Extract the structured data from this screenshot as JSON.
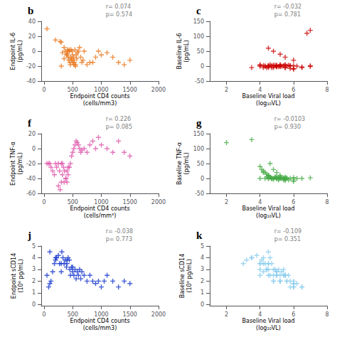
{
  "chart_data": [
    {
      "type": "scatter",
      "title": "b",
      "color": "#E8761A",
      "marker": "plus",
      "grid": false,
      "xlabel": "Endpoint CD4 counts\n(cells/mm3)",
      "ylabel": "Endpoint IL-6\n(pg/mL)",
      "annotations": [
        "r= 0.074\np= 0.574"
      ],
      "xlim": [
        -50,
        2000
      ],
      "ylim": [
        -40,
        40
      ],
      "xticks": [
        0,
        500,
        1000,
        1500,
        2000
      ],
      "yticks": [
        -40,
        -20,
        0,
        20,
        40
      ],
      "x": [
        50,
        200,
        280,
        300,
        320,
        350,
        370,
        390,
        400,
        410,
        420,
        430,
        440,
        450,
        460,
        470,
        480,
        490,
        500,
        510,
        520,
        530,
        540,
        550,
        560,
        570,
        580,
        600,
        620,
        640,
        660,
        680,
        700,
        750,
        800,
        850,
        900,
        950,
        1000,
        1100,
        1200,
        1300,
        1400,
        1500,
        300,
        350,
        400,
        420,
        440,
        460,
        480,
        500,
        520,
        550
      ],
      "values": [
        30,
        15,
        13,
        12,
        -2,
        5,
        0,
        -5,
        -3,
        2,
        -8,
        -12,
        0,
        -15,
        -18,
        2,
        -10,
        0,
        -5,
        -12,
        -8,
        -15,
        2,
        -18,
        -5,
        -10,
        -2,
        0,
        5,
        -8,
        -15,
        -12,
        0,
        -18,
        -15,
        -15,
        -8,
        0,
        -5,
        -2,
        -8,
        -15,
        -18,
        -12,
        -20,
        -10,
        -5,
        0,
        2,
        -8,
        -12,
        -15,
        -18,
        -20
      ]
    },
    {
      "type": "scatter",
      "title": "c",
      "color": "#CC0000",
      "marker": "plus",
      "grid": false,
      "xlabel": "Baseline Viral load\n(log₁₀VL)",
      "ylabel": "Baseline IL-6\n(pg/mL)",
      "annotations": [
        "r= -0.032\np= 0.781"
      ],
      "xlim": [
        1,
        8
      ],
      "ylim": [
        -50,
        150
      ],
      "xticks": [
        2,
        4,
        6,
        8
      ],
      "yticks": [
        -50,
        0,
        50,
        100,
        150
      ],
      "x": [
        6.8,
        7.0,
        5.0,
        4.5,
        4.8,
        5.2,
        5.5,
        6.0,
        4.0,
        4.2,
        4.5,
        4.8,
        5.0,
        5.2,
        5.5,
        5.8,
        6.0,
        6.2,
        4.3,
        4.4,
        4.5,
        4.6,
        4.7,
        4.8,
        4.9,
        5.0,
        5.1,
        5.2,
        5.3,
        5.4,
        5.5,
        5.6,
        5.7,
        5.8,
        6.0,
        6.5,
        7.0,
        4.0,
        4.2,
        4.5,
        4.8,
        5.0,
        5.2,
        3.5,
        4.0,
        4.5,
        5.0,
        5.5,
        4.3,
        4.5,
        4.7,
        5.0,
        5.2,
        5.5,
        5.8,
        6.0,
        6.5,
        7.0
      ],
      "values": [
        110,
        120,
        0,
        60,
        50,
        40,
        30,
        20,
        5,
        -5,
        0,
        3,
        -2,
        0,
        5,
        2,
        -8,
        0,
        0,
        -5,
        0,
        5,
        2,
        -5,
        3,
        0,
        -2,
        5,
        0,
        2,
        -5,
        0,
        3,
        -8,
        -10,
        -5,
        0,
        0,
        2,
        -5,
        0,
        3,
        -2,
        -5,
        2,
        0,
        -2,
        3,
        0,
        2,
        -5,
        0,
        3,
        -5,
        0,
        2,
        -3,
        0
      ]
    },
    {
      "type": "scatter",
      "title": "f",
      "color": "#DD55AA",
      "marker": "plus",
      "grid": false,
      "xlabel": "Endpoint CD4 counts\n(cells/mm³)",
      "ylabel": "Endpoint TNF-α\n(pg/mL)",
      "annotations": [
        "r= 0.226\np= 0.085"
      ],
      "xlim": [
        -50,
        2000
      ],
      "ylim": [
        -60,
        20
      ],
      "xticks": [
        0,
        500,
        1000,
        1500,
        2000
      ],
      "yticks": [
        -60,
        -40,
        -20,
        0,
        20
      ],
      "x": [
        50,
        80,
        100,
        120,
        150,
        180,
        200,
        220,
        250,
        270,
        300,
        320,
        340,
        360,
        380,
        400,
        420,
        440,
        460,
        480,
        500,
        520,
        540,
        560,
        580,
        600,
        620,
        640,
        660,
        700,
        750,
        800,
        850,
        900,
        950,
        1000,
        1100,
        1200,
        1300,
        1400,
        1500,
        250,
        280,
        300,
        320,
        350,
        380,
        400,
        420
      ],
      "values": [
        -20,
        -20,
        -20,
        -25,
        -30,
        -35,
        -20,
        -25,
        -20,
        -30,
        -20,
        -20,
        -25,
        -30,
        -40,
        -45,
        -35,
        -25,
        -20,
        -10,
        -5,
        0,
        5,
        10,
        8,
        5,
        0,
        -5,
        -2,
        0,
        -5,
        5,
        10,
        0,
        15,
        5,
        0,
        -5,
        10,
        -5,
        -10,
        -50,
        -55,
        -45,
        -35,
        -45,
        -40,
        -30,
        -25
      ]
    },
    {
      "type": "scatter",
      "title": "g",
      "color": "#44AA44",
      "marker": "plus",
      "grid": false,
      "xlabel": "Baseline Viral load\n(log₁₀VL)",
      "ylabel": "Baseline TNF-α\n(pg/mL)",
      "annotations": [
        "r= -0.0103\np= 0.930"
      ],
      "xlim": [
        1,
        8
      ],
      "ylim": [
        -50,
        150
      ],
      "xticks": [
        2,
        4,
        6,
        8
      ],
      "yticks": [
        -50,
        0,
        50,
        100,
        150
      ],
      "x": [
        2.0,
        3.5,
        4.0,
        4.1,
        4.2,
        4.3,
        4.4,
        4.5,
        4.5,
        4.6,
        4.6,
        4.7,
        4.7,
        4.8,
        4.8,
        4.9,
        5.0,
        5.0,
        5.1,
        5.1,
        5.2,
        5.2,
        5.3,
        5.4,
        5.5,
        5.5,
        5.6,
        5.7,
        5.8,
        6.0,
        6.2,
        4.3,
        4.4,
        4.5,
        4.6,
        4.7,
        4.8,
        4.9,
        5.0,
        5.1,
        5.2,
        5.3,
        5.4,
        5.5,
        5.6,
        4.5,
        5.0,
        5.5,
        6.0,
        4.0,
        4.5,
        5.0,
        5.5,
        6.0,
        6.5,
        7.0,
        4.2,
        4.8,
        5.2,
        5.5
      ],
      "values": [
        120,
        130,
        40,
        30,
        25,
        20,
        15,
        10,
        8,
        5,
        50,
        2,
        0,
        -2,
        30,
        5,
        0,
        20,
        -2,
        5,
        0,
        10,
        3,
        -5,
        0,
        5,
        2,
        -5,
        0,
        -10,
        0,
        0,
        5,
        0,
        3,
        0,
        -2,
        5,
        0,
        -5,
        3,
        0,
        2,
        -5,
        0,
        10,
        5,
        0,
        -5,
        0,
        0,
        2,
        -5,
        3,
        0,
        2,
        20,
        0,
        5,
        -5
      ]
    },
    {
      "type": "scatter",
      "title": "j",
      "color": "#1133CC",
      "marker": "plus",
      "grid": false,
      "xlabel": "Endpoint CD4 counts\n(cells/mm3)",
      "ylabel": "Endpoint sCD14\n(10⁶ pg/mL)",
      "annotations": [
        "r= -0.038\np= 0.773"
      ],
      "xlim": [
        -50,
        2000
      ],
      "ylim": [
        -0.1,
        5
      ],
      "xticks": [
        0,
        500,
        1000,
        1500,
        2000
      ],
      "yticks": [
        0,
        1,
        2,
        3,
        4,
        5
      ],
      "x": [
        50,
        80,
        100,
        120,
        150,
        180,
        200,
        220,
        250,
        270,
        300,
        310,
        330,
        350,
        370,
        390,
        400,
        420,
        440,
        450,
        460,
        480,
        500,
        520,
        540,
        560,
        580,
        600,
        620,
        640,
        660,
        700,
        750,
        800,
        850,
        900,
        950,
        1000,
        1050,
        1100,
        1200,
        1300,
        1400,
        1500,
        100,
        200,
        300,
        400,
        500
      ],
      "values": [
        2.5,
        1.5,
        1.8,
        2.0,
        2.8,
        3.5,
        3.8,
        4.0,
        4.2,
        3.5,
        2.8,
        4.5,
        4.0,
        3.5,
        3.8,
        3.2,
        3.5,
        4.0,
        3.8,
        3.0,
        2.5,
        3.2,
        2.8,
        2.5,
        3.0,
        2.2,
        2.8,
        2.5,
        3.0,
        2.2,
        2.8,
        2.5,
        2.0,
        2.5,
        2.0,
        1.8,
        2.0,
        1.5,
        2.0,
        2.5,
        2.0,
        1.5,
        2.0,
        1.8,
        4.5,
        4.0,
        3.5,
        3.8,
        3.2
      ]
    },
    {
      "type": "scatter",
      "title": "k",
      "color": "#88CCEE",
      "marker": "plus",
      "grid": false,
      "xlabel": "Baseline Viral load\n(log₁₀VL)",
      "ylabel": "Baseline sCD14\n(10⁶ pg/mL)",
      "annotations": [
        "r= -0.109\np= 0.351"
      ],
      "xlim": [
        1,
        8
      ],
      "ylim": [
        -0.1,
        5
      ],
      "xticks": [
        2,
        4,
        6,
        8
      ],
      "yticks": [
        0,
        1,
        2,
        3,
        4,
        5
      ],
      "x": [
        3.0,
        3.2,
        3.5,
        3.8,
        4.0,
        4.1,
        4.2,
        4.3,
        4.4,
        4.5,
        4.5,
        4.6,
        4.7,
        4.8,
        4.9,
        5.0,
        5.1,
        5.2,
        5.3,
        5.4,
        5.5,
        5.6,
        5.7,
        5.8,
        6.0,
        6.2,
        6.5,
        4.0,
        4.2,
        4.4,
        4.6,
        4.8,
        5.0,
        5.2,
        5.4,
        5.6,
        5.8,
        6.0,
        4.5,
        4.8,
        5.0,
        5.2,
        5.5,
        6.0,
        3.5,
        4.0,
        4.5,
        5.0,
        5.5,
        6.0,
        4.0,
        4.2,
        4.5,
        4.8,
        5.0,
        5.2,
        5.5,
        6.0,
        6.5
      ],
      "values": [
        3.5,
        3.8,
        4.0,
        4.2,
        3.5,
        3.8,
        4.0,
        3.5,
        3.0,
        3.5,
        4.5,
        4.0,
        3.5,
        2.5,
        3.0,
        2.8,
        3.0,
        2.5,
        2.8,
        3.0,
        2.5,
        2.0,
        2.5,
        2.0,
        1.5,
        1.8,
        1.5,
        2.5,
        2.8,
        3.0,
        2.5,
        2.0,
        2.5,
        2.0,
        2.5,
        2.0,
        1.5,
        1.8,
        3.5,
        3.0,
        2.5,
        2.0,
        2.5,
        1.5,
        4.0,
        3.5,
        3.0,
        2.8,
        2.5,
        2.0,
        3.0,
        3.5,
        2.5,
        2.0,
        2.5,
        2.0,
        2.5,
        1.8,
        1.5
      ]
    }
  ]
}
